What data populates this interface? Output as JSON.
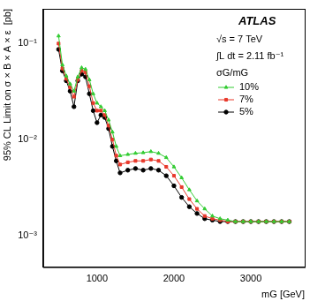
{
  "chart_data": {
    "type": "line",
    "x_label": "mG [GeV]",
    "y_label": "95% CL Limit on σ × B × A × ε  [pb]",
    "annotations": [
      "ATLAS",
      "√s = 7 TeV",
      "∫L dt = 2.11 fb⁻¹",
      "σG/mG"
    ],
    "log": "y",
    "grid": false,
    "legend": "top-right",
    "xlim": [
      300,
      3700
    ],
    "xticks": [
      1000,
      2000,
      3000
    ],
    "ylim": [
      0.00047,
      0.23
    ],
    "yticks": [
      {
        "value": 0.001,
        "label": "10⁻³"
      },
      {
        "value": 0.01,
        "label": "10⁻²"
      },
      {
        "value": 0.1,
        "label": "10⁻¹"
      }
    ],
    "x": [
      500,
      550,
      600,
      650,
      700,
      750,
      800,
      850,
      900,
      950,
      1000,
      1050,
      1100,
      1150,
      1200,
      1250,
      1300,
      1400,
      1500,
      1600,
      1700,
      1800,
      1900,
      2000,
      2100,
      2200,
      2300,
      2400,
      2500,
      2600,
      2700,
      2800,
      2900,
      3000,
      3100,
      3200,
      3300,
      3400,
      3500
    ],
    "series": [
      {
        "name": "10%",
        "color": "#33cc33",
        "marker": "triangle",
        "values": [
          0.12,
          0.06,
          0.046,
          0.038,
          0.032,
          0.045,
          0.056,
          0.054,
          0.042,
          0.03,
          0.024,
          0.022,
          0.02,
          0.016,
          0.012,
          0.0085,
          0.0068,
          0.007,
          0.0072,
          0.0073,
          0.0075,
          0.0072,
          0.0065,
          0.0052,
          0.004,
          0.003,
          0.0023,
          0.0019,
          0.0016,
          0.0015,
          0.00145,
          0.0014,
          0.0014,
          0.0014,
          0.0014,
          0.0014,
          0.0014,
          0.0014,
          0.0014
        ]
      },
      {
        "name": "7%",
        "color": "#e8392b",
        "marker": "square",
        "values": [
          0.1,
          0.055,
          0.043,
          0.035,
          0.028,
          0.042,
          0.052,
          0.05,
          0.036,
          0.024,
          0.02,
          0.02,
          0.018,
          0.014,
          0.01,
          0.0068,
          0.0055,
          0.0058,
          0.006,
          0.006,
          0.0062,
          0.006,
          0.0052,
          0.0042,
          0.0032,
          0.0024,
          0.0019,
          0.0016,
          0.0015,
          0.00145,
          0.0014,
          0.0014,
          0.0014,
          0.0014,
          0.0014,
          0.0014,
          0.0014,
          0.0014,
          0.0014
        ]
      },
      {
        "name": "5%",
        "color": "#000000",
        "marker": "circle",
        "values": [
          0.087,
          0.052,
          0.041,
          0.032,
          0.022,
          0.041,
          0.048,
          0.045,
          0.03,
          0.02,
          0.015,
          0.018,
          0.017,
          0.013,
          0.0085,
          0.006,
          0.0045,
          0.0048,
          0.005,
          0.0048,
          0.005,
          0.0048,
          0.0042,
          0.0033,
          0.0025,
          0.002,
          0.0017,
          0.0015,
          0.00145,
          0.0014,
          0.0014,
          0.0014,
          0.0014,
          0.0014,
          0.0014,
          0.0014,
          0.0014,
          0.0014,
          0.0014
        ]
      }
    ]
  }
}
